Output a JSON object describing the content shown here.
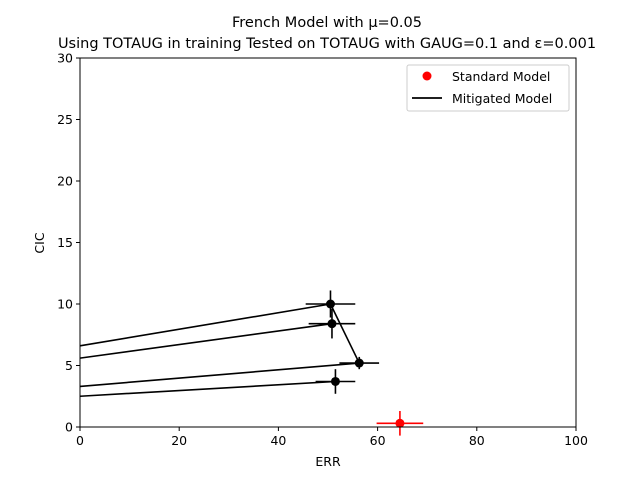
{
  "chart_data": {
    "type": "scatter",
    "title_line1": "French Model with μ=0.05",
    "title_line2": "Using TOTAUG in training Tested on TOTAUG with GAUG=0.1 and ε=0.001",
    "xlabel": "ERR",
    "ylabel": "CIC",
    "xlim": [
      0,
      100
    ],
    "ylim": [
      0,
      30
    ],
    "xticks": [
      "0",
      "20",
      "40",
      "60",
      "80",
      "100"
    ],
    "yticks": [
      "0",
      "5",
      "10",
      "15",
      "20",
      "25",
      "30"
    ],
    "legend_position": "top-right",
    "legend": [
      "Standard Model",
      "Mitigated Model"
    ],
    "colors": {
      "standard": "#ff0000",
      "mitigated": "#000000"
    },
    "standard_points": [
      {
        "x": 64.5,
        "y": 0.3,
        "xerr": 4.7,
        "yerr": 1.0
      }
    ],
    "mitigated_points": [
      {
        "x": 50.5,
        "y": 10.0,
        "xerr": 5.0,
        "yerr": 1.1
      },
      {
        "x": 50.8,
        "y": 8.4,
        "xerr": 4.7,
        "yerr": 1.2
      },
      {
        "x": 56.3,
        "y": 5.2,
        "xerr": 4.0,
        "yerr": 0.5
      },
      {
        "x": 51.5,
        "y": 3.7,
        "xerr": 4.0,
        "yerr": 1.0
      }
    ],
    "mitigated_line_segments": [
      [
        [
          0,
          6.6
        ],
        [
          50.5,
          10.0
        ]
      ],
      [
        [
          0,
          5.6
        ],
        [
          50.8,
          8.4
        ]
      ],
      [
        [
          0,
          3.3
        ],
        [
          56.3,
          5.2
        ]
      ],
      [
        [
          0,
          2.5
        ],
        [
          51.5,
          3.7
        ]
      ],
      [
        [
          50.5,
          10.0
        ],
        [
          56.3,
          5.2
        ]
      ]
    ]
  }
}
